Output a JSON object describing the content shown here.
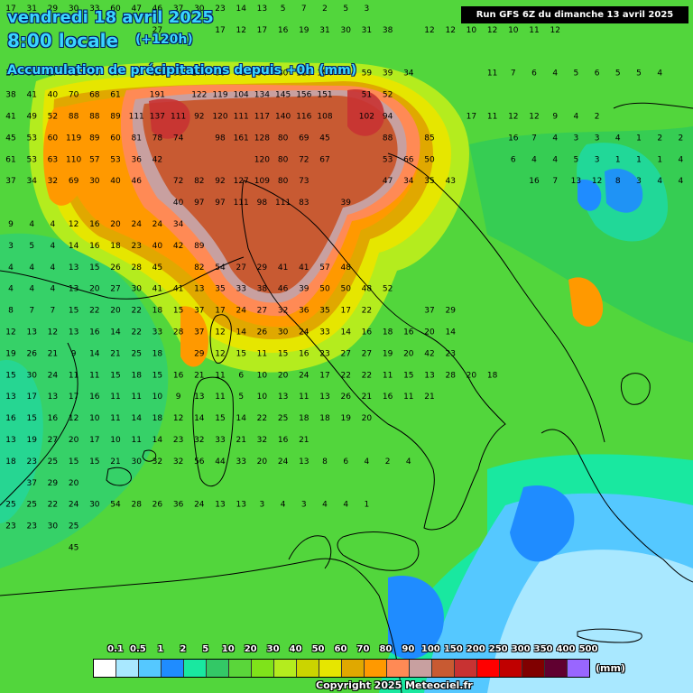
{
  "header": {
    "date": "vendredi 18 avril 2025",
    "time": "8:00 locale",
    "offset": "(+120h)",
    "accumulation": "Accumulation de précipitations depuis +0h (mm)",
    "run": "Run GFS 6Z du dimanche 13 avril 2025"
  },
  "legend": {
    "labels": [
      "0.1",
      "0.5",
      "1",
      "2",
      "5",
      "10",
      "20",
      "30",
      "40",
      "50",
      "60",
      "70",
      "80",
      "90",
      "100",
      "150",
      "200",
      "250",
      "300",
      "350",
      "400",
      "500"
    ],
    "colors": [
      "#ffffff",
      "#a9e8ff",
      "#55c8ff",
      "#1f8cff",
      "#19e8a0",
      "#33c866",
      "#5ad63a",
      "#7fe31a",
      "#b4ec1e",
      "#cbd400",
      "#e6e600",
      "#e0a800",
      "#ff9900",
      "#ff8a55",
      "#c8a0a0",
      "#c85a32",
      "#c83232",
      "#ff0000",
      "#c00000",
      "#800000",
      "#600030",
      "#9966ff"
    ],
    "unit": "(mm)"
  },
  "copyright": "Copyright 2025 Meteociel.fr",
  "grid": {
    "rows": [
      [
        "17",
        "31",
        "29",
        "30",
        "33",
        "60",
        "47",
        "46",
        "37",
        "30",
        "23",
        "14",
        "13",
        "5",
        "7",
        "2",
        "5",
        "3"
      ],
      [
        "",
        "",
        "",
        "",
        "",
        "",
        "",
        "27",
        "",
        "",
        "17",
        "12",
        "17",
        "16",
        "19",
        "31",
        "30",
        "31",
        "38",
        "",
        "12",
        "12",
        "10",
        "12",
        "10",
        "11",
        "12"
      ],
      [
        "",
        "",
        "",
        "",
        "",
        "",
        "",
        "",
        "",
        "",
        "",
        "",
        "",
        "",
        "",
        "",
        "",
        "",
        "",
        "",
        "",
        "",
        "",
        "",
        "",
        "",
        "",
        ""
      ],
      [
        "29",
        "33",
        "27",
        "51",
        "56",
        "57",
        "48",
        "128",
        "93",
        "174",
        "30",
        "72",
        "56",
        "80",
        "110",
        "154",
        "",
        "59",
        "39",
        "34",
        "",
        "",
        "",
        "11",
        "7",
        "6",
        "4",
        "5",
        "6",
        "5",
        "5",
        "4"
      ],
      [
        "38",
        "41",
        "40",
        "70",
        "68",
        "61",
        "",
        "191",
        "",
        "122",
        "119",
        "104",
        "134",
        "145",
        "156",
        "151",
        "",
        "51",
        "52",
        "",
        "",
        "",
        "",
        "",
        "",
        "",
        "",
        "",
        "",
        "",
        "",
        "",
        ""
      ],
      [
        "41",
        "49",
        "52",
        "88",
        "88",
        "89",
        "111",
        "137",
        "111",
        "92",
        "120",
        "111",
        "117",
        "140",
        "116",
        "108",
        "",
        "102",
        "94",
        "",
        "",
        "",
        "17",
        "11",
        "12",
        "12",
        "9",
        "4",
        "2",
        "",
        "",
        "",
        ""
      ],
      [
        "45",
        "53",
        "60",
        "119",
        "89",
        "60",
        "81",
        "78",
        "74",
        "",
        "98",
        "161",
        "128",
        "80",
        "69",
        "45",
        "",
        "",
        "88",
        "",
        "85",
        "",
        "",
        "",
        "16",
        "7",
        "4",
        "3",
        "3",
        "4",
        "1",
        "2",
        "2"
      ],
      [
        "61",
        "53",
        "63",
        "110",
        "57",
        "53",
        "36",
        "42",
        "",
        "",
        "",
        "",
        "120",
        "80",
        "72",
        "67",
        "",
        "",
        "53",
        "66",
        "50",
        "",
        "",
        "",
        "6",
        "4",
        "4",
        "5",
        "3",
        "1",
        "1",
        "1",
        "4",
        "6"
      ],
      [
        "37",
        "34",
        "32",
        "69",
        "30",
        "40",
        "46",
        "",
        "72",
        "82",
        "92",
        "127",
        "109",
        "80",
        "73",
        "",
        "",
        "",
        "47",
        "34",
        "35",
        "43",
        "",
        "",
        "",
        "16",
        "7",
        "13",
        "12",
        "8",
        "3",
        "4",
        "4"
      ],
      [
        "",
        "",
        "",
        "",
        "",
        "",
        "",
        "",
        "40",
        "97",
        "97",
        "111",
        "98",
        "111",
        "83",
        "",
        "39",
        "",
        "",
        "",
        "",
        "",
        "",
        "",
        "",
        "",
        "",
        "",
        "",
        "",
        "",
        "",
        ""
      ],
      [
        "9",
        "4",
        "4",
        "12",
        "16",
        "20",
        "24",
        "24",
        "34",
        "",
        "",
        "",
        "",
        "",
        "",
        "",
        "",
        "",
        "",
        "",
        "",
        "",
        "",
        "",
        "",
        "",
        "",
        "",
        "",
        "",
        "",
        "",
        ""
      ],
      [
        "3",
        "5",
        "4",
        "14",
        "16",
        "18",
        "23",
        "40",
        "42",
        "89",
        "",
        "",
        "",
        "",
        "",
        "",
        "",
        "",
        "",
        "",
        "",
        "",
        "",
        "",
        "",
        "",
        "",
        "",
        "",
        "",
        "",
        "",
        ""
      ],
      [
        "4",
        "4",
        "4",
        "13",
        "15",
        "26",
        "28",
        "45",
        "",
        "82",
        "54",
        "27",
        "29",
        "41",
        "41",
        "57",
        "48",
        "",
        "",
        "",
        "",
        "",
        "",
        "",
        "",
        "",
        "",
        "",
        "",
        "",
        "",
        "",
        ""
      ],
      [
        "4",
        "4",
        "4",
        "13",
        "20",
        "27",
        "30",
        "41",
        "41",
        "13",
        "35",
        "33",
        "38",
        "46",
        "39",
        "50",
        "50",
        "48",
        "52",
        "",
        "",
        "",
        "",
        "",
        "",
        "",
        "",
        "",
        "",
        "",
        "",
        "",
        ""
      ],
      [
        "8",
        "7",
        "7",
        "15",
        "22",
        "20",
        "22",
        "18",
        "15",
        "37",
        "17",
        "24",
        "27",
        "32",
        "36",
        "35",
        "17",
        "22",
        "",
        "",
        "37",
        "29",
        "",
        "",
        "",
        "",
        "",
        "",
        "",
        "",
        "",
        "",
        ""
      ],
      [
        "12",
        "13",
        "12",
        "13",
        "16",
        "14",
        "22",
        "33",
        "28",
        "37",
        "12",
        "14",
        "26",
        "30",
        "24",
        "33",
        "14",
        "16",
        "18",
        "16",
        "20",
        "14",
        "",
        "",
        "",
        "",
        "",
        "",
        "",
        "",
        "",
        "",
        ""
      ],
      [
        "19",
        "26",
        "21",
        "9",
        "14",
        "21",
        "25",
        "18",
        "",
        "29",
        "12",
        "15",
        "11",
        "15",
        "16",
        "23",
        "27",
        "27",
        "19",
        "20",
        "42",
        "23",
        "",
        "",
        "",
        "",
        "",
        "",
        "",
        "",
        "",
        "",
        ""
      ],
      [
        "15",
        "30",
        "24",
        "11",
        "11",
        "15",
        "18",
        "15",
        "16",
        "21",
        "11",
        "6",
        "10",
        "20",
        "24",
        "17",
        "22",
        "22",
        "11",
        "15",
        "13",
        "28",
        "20",
        "18",
        "",
        "",
        "",
        "",
        "",
        "",
        "",
        "",
        ""
      ],
      [
        "13",
        "17",
        "13",
        "17",
        "16",
        "11",
        "11",
        "10",
        "9",
        "13",
        "11",
        "5",
        "10",
        "13",
        "11",
        "13",
        "26",
        "21",
        "16",
        "11",
        "21",
        "",
        "",
        "",
        "",
        "",
        "",
        "",
        "",
        "",
        "",
        "",
        ""
      ],
      [
        "16",
        "15",
        "16",
        "12",
        "10",
        "11",
        "14",
        "18",
        "12",
        "14",
        "15",
        "14",
        "22",
        "25",
        "18",
        "18",
        "19",
        "20",
        "",
        "",
        "",
        "",
        "",
        "",
        "",
        "",
        "",
        "",
        "",
        "",
        "",
        "",
        ""
      ],
      [
        "13",
        "19",
        "27",
        "20",
        "17",
        "10",
        "11",
        "14",
        "23",
        "32",
        "33",
        "21",
        "32",
        "16",
        "21",
        "",
        "",
        "",
        "",
        "",
        "",
        "",
        "",
        "",
        "",
        "",
        "",
        "",
        "",
        "",
        "",
        "",
        ""
      ],
      [
        "18",
        "23",
        "25",
        "15",
        "15",
        "21",
        "30",
        "32",
        "32",
        "56",
        "44",
        "33",
        "20",
        "24",
        "13",
        "8",
        "6",
        "4",
        "2",
        "4",
        "",
        "",
        "",
        "",
        "",
        "",
        "",
        "",
        "",
        "",
        "",
        "",
        ""
      ],
      [
        "",
        "37",
        "29",
        "20",
        "",
        "",
        "",
        "",
        "",
        "",
        "",
        "",
        "",
        "",
        "",
        "",
        "",
        "",
        "",
        "",
        "",
        "",
        "",
        "",
        "",
        "",
        "",
        "",
        "",
        "",
        "",
        "",
        ""
      ],
      [
        "25",
        "25",
        "22",
        "24",
        "30",
        "54",
        "28",
        "26",
        "36",
        "24",
        "13",
        "13",
        "3",
        "4",
        "3",
        "4",
        "4",
        "1",
        "",
        "",
        "",
        "",
        "",
        "",
        "",
        "",
        "",
        "",
        "",
        "",
        "",
        "",
        ""
      ],
      [
        "23",
        "23",
        "30",
        "25",
        "",
        "",
        "",
        "",
        "",
        "",
        "",
        "",
        "",
        "",
        "",
        "",
        "",
        "",
        "",
        "",
        "",
        "",
        "",
        "",
        "",
        "",
        "",
        "",
        "",
        "",
        "",
        "",
        ""
      ],
      [
        "",
        "",
        "",
        "45",
        "",
        "",
        "",
        "",
        "",
        "",
        "",
        "",
        "",
        "",
        "",
        "",
        "",
        "",
        "",
        "",
        "",
        "",
        "",
        "",
        "",
        "",
        "",
        "",
        "",
        "",
        "",
        "",
        ""
      ]
    ]
  }
}
